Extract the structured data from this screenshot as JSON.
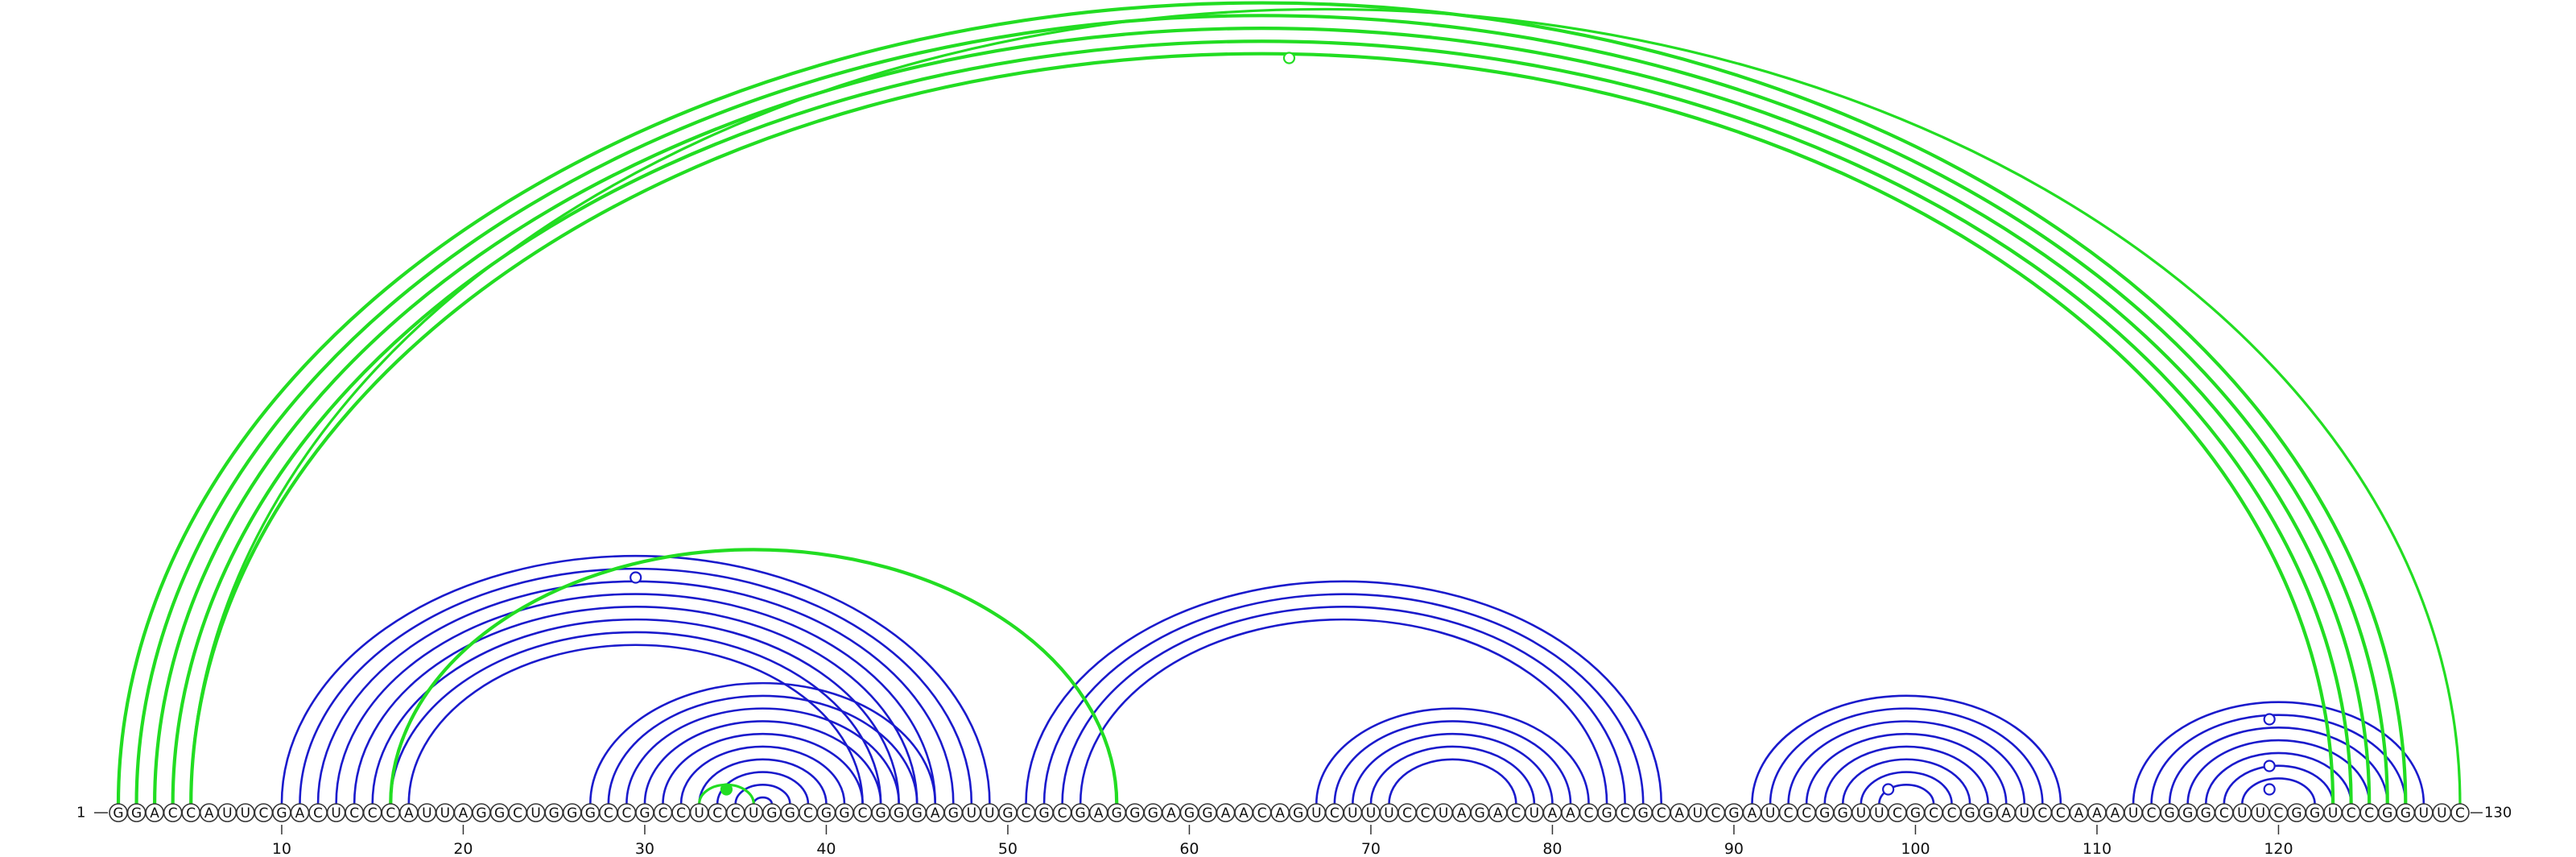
{
  "chart_data": {
    "type": "arc-diagram",
    "sequence": "GGACCAUUCGACUCCCAUUAGGCUGGGCCGCCUCCUGGCGGCGGGAGUUGCGCGAGGGAGGAACAGUCUUUCCUAGACUAACGCGCAUCGAUCCGGUUCGCCGGAUCCAAAUCGGGCUUCGGUCCGGUUC",
    "start_label": "1",
    "end_label": "130",
    "ticks": [
      10,
      20,
      30,
      40,
      50,
      60,
      70,
      80,
      90,
      100,
      110,
      120
    ],
    "colors": {
      "helix_blue": "#1a1acc",
      "pseudoknot_green": "#22dd22"
    },
    "blue_helices": [
      {
        "i": 10,
        "j": 49,
        "len": 8
      },
      {
        "i": 27,
        "j": 46,
        "len": 10
      },
      {
        "i": 51,
        "j": 86,
        "len": 4
      },
      {
        "i": 67,
        "j": 82,
        "len": 5
      },
      {
        "i": 91,
        "j": 108,
        "len": 8
      },
      {
        "i": 112,
        "j": 128,
        "len": 7
      }
    ],
    "green_helices": [
      {
        "i": 1,
        "j": 127,
        "len": 5
      },
      {
        "i": 16,
        "j": 56,
        "len": 1
      }
    ],
    "green_extra_pairs": [
      {
        "i": 33,
        "j": 36
      },
      {
        "i": 5,
        "j": 130
      }
    ],
    "markers": [
      {
        "i": 29.5,
        "color": "blue",
        "fill": "open",
        "level": "top"
      },
      {
        "i": 65.5,
        "color": "green",
        "fill": "open",
        "level": "top"
      },
      {
        "i": 34.5,
        "color": "green",
        "fill": "filled",
        "level": "low"
      },
      {
        "i": 98.5,
        "color": "blue",
        "fill": "open",
        "level": "low"
      },
      {
        "i": 119.5,
        "color": "blue",
        "fill": "open",
        "level": "low"
      },
      {
        "i": 119.5,
        "color": "blue",
        "fill": "open",
        "level": "mid"
      },
      {
        "i": 119.5,
        "color": "blue",
        "fill": "open",
        "level": "high"
      }
    ]
  }
}
